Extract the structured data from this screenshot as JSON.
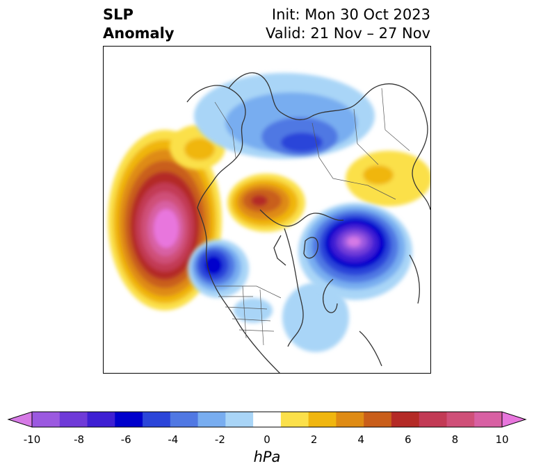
{
  "title": {
    "variable_line1": "SLP",
    "variable_line2": "Anomaly",
    "init": "Init: Mon 30 Oct 2023",
    "valid": "Valid: 21 Nov – 27 Nov"
  },
  "colorbar": {
    "unit": "hPa",
    "tick_labels": [
      "-10",
      "-8",
      "-6",
      "-4",
      "-2",
      "0",
      "2",
      "4",
      "6",
      "8",
      "10"
    ],
    "levels": [
      -10,
      -9,
      -8,
      -7,
      -6,
      -5,
      -4,
      -3,
      -2,
      -1,
      1,
      2,
      3,
      4,
      5,
      6,
      7,
      8,
      9,
      10
    ],
    "colors": [
      "#d67ae6",
      "#9b59e0",
      "#6f3ad8",
      "#3e1fd3",
      "#0000cc",
      "#2b45d9",
      "#5078e3",
      "#78adf0",
      "#a9d5f7",
      "#ffffff",
      "#fbe04a",
      "#f0b60f",
      "#df8b14",
      "#c95e1a",
      "#b42a26",
      "#c23a55",
      "#cf4f78",
      "#d860a3",
      "#e876dd"
    ],
    "extend": "both"
  },
  "map": {
    "projection": "north-polar-stereographic",
    "centers": [
      {
        "type": "high",
        "region": "North Pacific",
        "peak_hpa": 10
      },
      {
        "type": "high",
        "region": "Siberian Arctic",
        "peak_hpa": 6
      },
      {
        "type": "high",
        "region": "Western Europe",
        "peak_hpa": 2
      },
      {
        "type": "high",
        "region": "Northeast Asia",
        "peak_hpa": 2
      },
      {
        "type": "low",
        "region": "Iceland / North Atlantic",
        "peak_hpa": -10
      },
      {
        "type": "low",
        "region": "Western Canada",
        "peak_hpa": -7
      },
      {
        "type": "low",
        "region": "Northern Russia",
        "peak_hpa": -5
      },
      {
        "type": "low",
        "region": "Western Atlantic",
        "peak_hpa": -2
      }
    ]
  }
}
